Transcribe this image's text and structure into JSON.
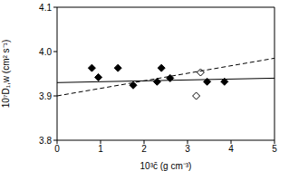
{
  "chart_data": {
    "type": "scatter",
    "x_label": "10³c̄ (g cm⁻³)",
    "y_label": "10⁷D₁,w (cm² s⁻¹)",
    "xlim": [
      0,
      5
    ],
    "xticks": [
      0,
      1,
      2,
      3,
      4,
      5
    ],
    "ylim": [
      3.8,
      4.1
    ],
    "yticks": [
      3.8,
      3.9,
      {
        "value": 4,
        "label": "4.0"
      },
      4.1
    ],
    "grid": false,
    "series": [
      {
        "type": "scatter",
        "marker": "diamond_filled",
        "color": "#000000",
        "x": [
          0.8,
          0.95,
          1.4,
          1.75,
          2.3,
          2.4,
          2.6,
          3.45,
          3.85
        ],
        "values": [
          3.963,
          3.942,
          3.963,
          3.924,
          3.932,
          3.963,
          3.94,
          3.932,
          3.932
        ]
      },
      {
        "type": "scatter",
        "marker": "diamond_open",
        "color": "#000000",
        "x": [
          3.2,
          3.3
        ],
        "values": [
          3.9,
          3.953
        ]
      },
      {
        "type": "line",
        "line_style": "solid",
        "color": "#000000",
        "x": [
          0,
          5
        ],
        "values": [
          3.93,
          3.94
        ]
      },
      {
        "type": "line",
        "line_style": "dashed",
        "color": "#000000",
        "x": [
          0,
          5
        ],
        "values": [
          3.9,
          3.985
        ]
      }
    ]
  }
}
